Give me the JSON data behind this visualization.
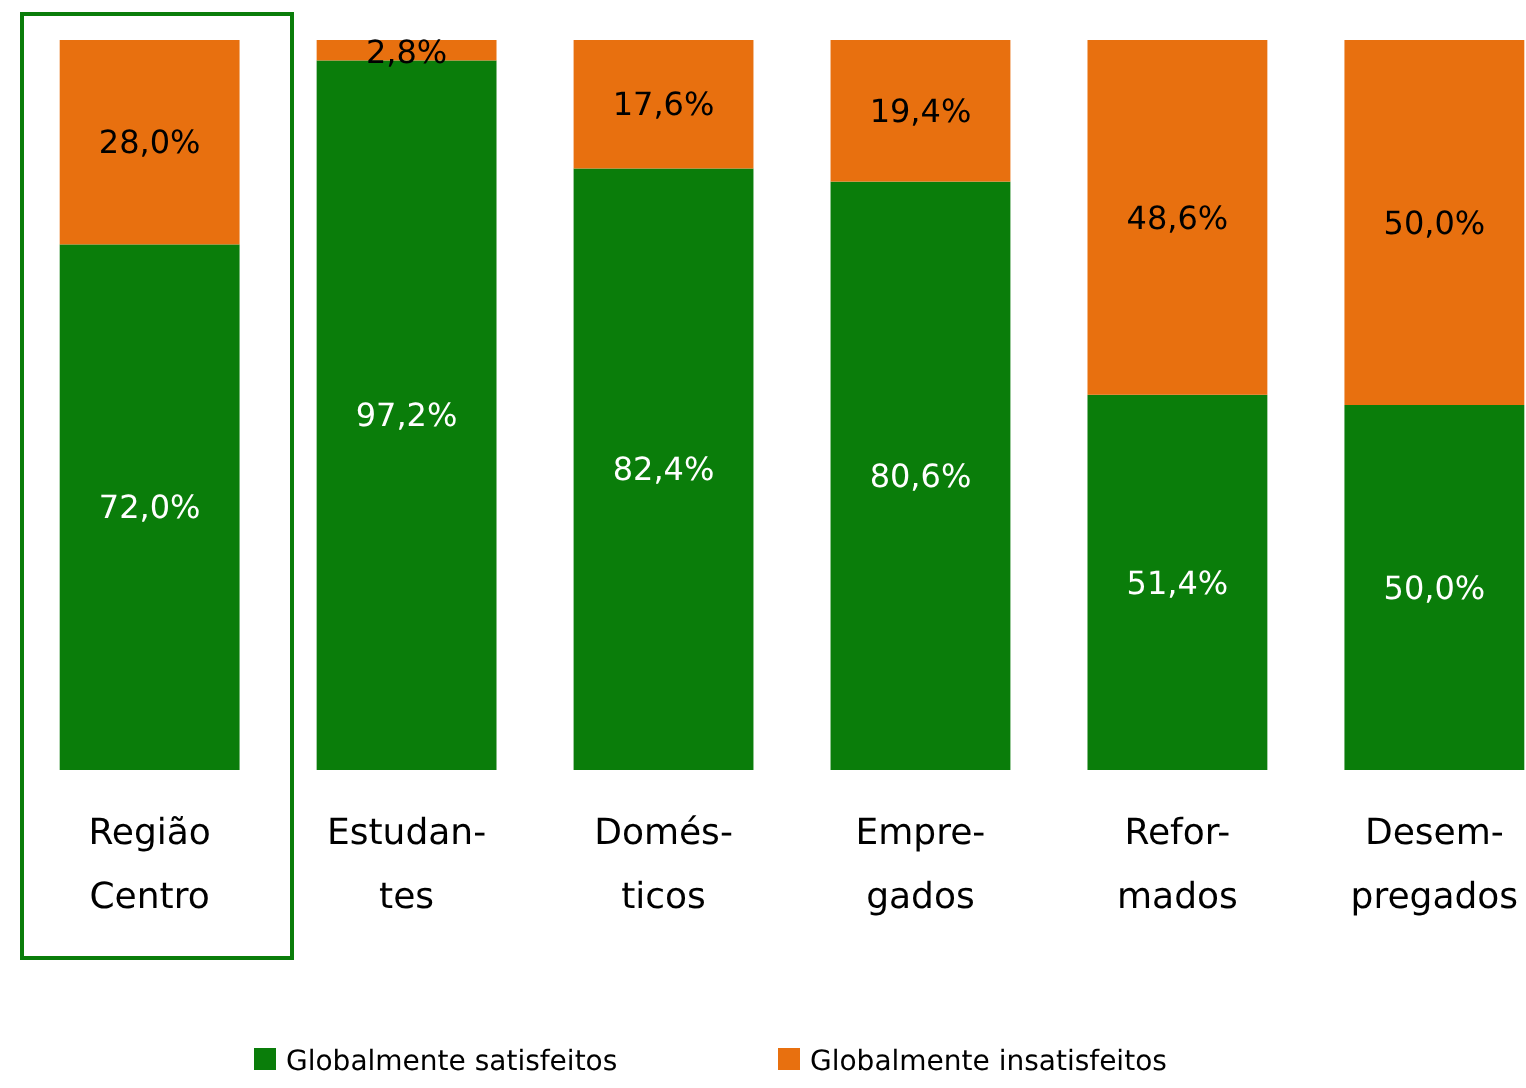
{
  "chart_data": {
    "type": "bar",
    "stacked": true,
    "categories": [
      "Região\nCentro",
      "Estudan-\ntes",
      "Domés-\nticos",
      "Empre-\ngados",
      "Refor-\nmados",
      "Desem-\npregados"
    ],
    "series": [
      {
        "name": "Globalmente satisfeitos",
        "color": "#0a7d0a",
        "values": [
          72.0,
          97.2,
          82.4,
          80.6,
          51.4,
          50.0
        ],
        "value_labels": [
          "72,0%",
          "97,2%",
          "82,4%",
          "80,6%",
          "51,4%",
          "50,0%"
        ]
      },
      {
        "name": "Globalmente insatisfeitos",
        "color": "#e8700f",
        "values": [
          28.0,
          2.8,
          17.6,
          19.4,
          48.6,
          50.0
        ],
        "value_labels": [
          "28,0%",
          "2,8%",
          "17,6%",
          "19,4%",
          "48,6%",
          "50,0%"
        ]
      }
    ],
    "legend": "bottom"
  }
}
